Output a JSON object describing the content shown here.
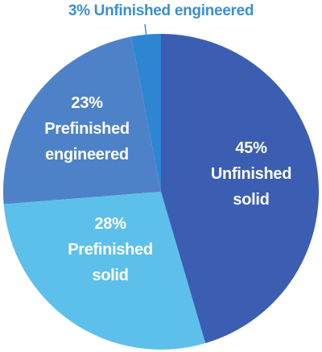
{
  "chart_data": {
    "type": "pie",
    "categories": [
      "Unfinished solid",
      "Prefinished solid",
      "Prefinished engineered",
      "Unfinished engineered"
    ],
    "values": [
      45,
      28,
      23,
      3
    ],
    "value_labels": [
      "45%",
      "28%",
      "23%",
      "3%"
    ],
    "colors": [
      "#3b5eb3",
      "#5cc0ea",
      "#4e82c8",
      "#2e86d3"
    ]
  }
}
